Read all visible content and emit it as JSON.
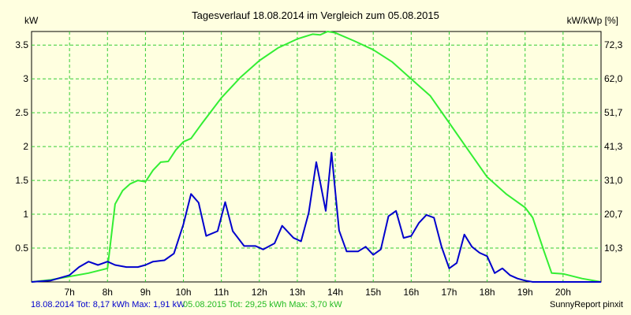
{
  "colors": {
    "background": "#ffffe0",
    "plot_area": "#ffffe0",
    "grid": "#33cc33",
    "series_2014": "#0000cc",
    "series_2015": "#33ee33",
    "axis": "#000000"
  },
  "chart_data": {
    "type": "line",
    "title": "Tagesverlauf 18.08.2014 im Vergleich zum 05.08.2015",
    "ylabel": "kW",
    "y2label": "kW/kWp [%]",
    "ylim": [
      0,
      3.7
    ],
    "y_ticks": [
      "0.5",
      "1",
      "1.5",
      "2",
      "2.5",
      "3",
      "3.5"
    ],
    "y_tick_values": [
      0.5,
      1,
      1.5,
      2,
      2.5,
      3,
      3.5
    ],
    "y2_ticks": [
      "10,3",
      "20,7",
      "31,0",
      "41,3",
      "51,7",
      "62,0",
      "72,3"
    ],
    "y2_tick_values": [
      0.5,
      1,
      1.5,
      2,
      2.5,
      3,
      3.5
    ],
    "xlim": [
      6.0,
      21.0
    ],
    "x_ticks": [
      "7h",
      "8h",
      "9h",
      "10h",
      "11h",
      "12h",
      "13h",
      "14h",
      "15h",
      "16h",
      "17h",
      "18h",
      "19h",
      "20h"
    ],
    "x_tick_values": [
      7,
      8,
      9,
      10,
      11,
      12,
      13,
      14,
      15,
      16,
      17,
      18,
      19,
      20
    ],
    "grid": true,
    "series": [
      {
        "name": "05.08.2015",
        "color": "#33ee33",
        "x": [
          6.0,
          6.5,
          7.0,
          7.5,
          8.0,
          8.2,
          8.4,
          8.6,
          8.8,
          9.0,
          9.2,
          9.4,
          9.6,
          9.8,
          10.0,
          10.2,
          10.5,
          11.0,
          11.5,
          12.0,
          12.5,
          13.0,
          13.4,
          13.6,
          13.8,
          14.0,
          14.5,
          15.0,
          15.5,
          16.0,
          16.5,
          17.0,
          17.5,
          18.0,
          18.5,
          19.0,
          19.2,
          19.5,
          19.7,
          20.0,
          20.5,
          21.0
        ],
        "values": [
          0.0,
          0.03,
          0.08,
          0.13,
          0.2,
          1.15,
          1.35,
          1.45,
          1.5,
          1.48,
          1.65,
          1.77,
          1.78,
          1.95,
          2.07,
          2.12,
          2.35,
          2.72,
          3.02,
          3.27,
          3.46,
          3.59,
          3.66,
          3.65,
          3.7,
          3.68,
          3.56,
          3.43,
          3.25,
          3.0,
          2.75,
          2.35,
          1.95,
          1.55,
          1.3,
          1.1,
          0.95,
          0.45,
          0.13,
          0.12,
          0.05,
          0.0
        ]
      },
      {
        "name": "18.08.2014",
        "color": "#0000cc",
        "x": [
          6.0,
          6.5,
          7.0,
          7.25,
          7.5,
          7.75,
          8.0,
          8.2,
          8.5,
          8.8,
          9.0,
          9.2,
          9.5,
          9.75,
          10.0,
          10.2,
          10.4,
          10.6,
          10.9,
          11.1,
          11.3,
          11.6,
          11.9,
          12.1,
          12.4,
          12.6,
          12.9,
          13.1,
          13.3,
          13.5,
          13.75,
          13.9,
          14.1,
          14.3,
          14.6,
          14.8,
          15.0,
          15.2,
          15.4,
          15.6,
          15.8,
          16.0,
          16.2,
          16.4,
          16.6,
          16.8,
          17.0,
          17.2,
          17.4,
          17.6,
          17.8,
          18.0,
          18.2,
          18.4,
          18.6,
          18.8,
          19.0,
          19.2,
          19.4,
          19.6,
          19.8,
          20.0,
          20.3,
          20.6,
          21.0
        ],
        "values": [
          0.0,
          0.02,
          0.1,
          0.22,
          0.3,
          0.25,
          0.3,
          0.25,
          0.22,
          0.22,
          0.25,
          0.3,
          0.32,
          0.42,
          0.85,
          1.3,
          1.17,
          0.68,
          0.75,
          1.18,
          0.75,
          0.53,
          0.53,
          0.48,
          0.57,
          0.83,
          0.65,
          0.6,
          1.02,
          1.77,
          1.05,
          1.91,
          0.76,
          0.45,
          0.45,
          0.52,
          0.4,
          0.48,
          0.97,
          1.05,
          0.65,
          0.68,
          0.87,
          0.99,
          0.95,
          0.52,
          0.2,
          0.28,
          0.7,
          0.52,
          0.43,
          0.38,
          0.13,
          0.2,
          0.1,
          0.05,
          0.02,
          0.0,
          0.0,
          0.0,
          0.0,
          0.0,
          0.0,
          0.0,
          0.0
        ]
      }
    ]
  },
  "footer": {
    "series_2014_summary": "18.08.2014 Tot: 8,17 kWh Max: 1,91 kW",
    "series_2015_summary": "05.08.2015 Tot: 29,25 kWh Max: 3,70 kW",
    "brand": "SunnyReport pinxit"
  }
}
